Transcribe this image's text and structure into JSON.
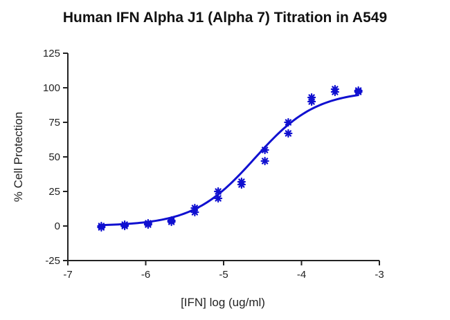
{
  "chart_data": {
    "type": "scatter",
    "title": "Human IFN Alpha J1 (Alpha 7) Titration in A549",
    "xlabel": "[IFN] log (ug/ml)",
    "ylabel": "% Cell Protection",
    "xlim": [
      -7,
      -3
    ],
    "ylim": [
      -25,
      125
    ],
    "x_ticks": [
      -7,
      -6,
      -5,
      -4,
      -3
    ],
    "x_tick_labels": [
      "-7",
      "-6",
      "-5",
      "-4",
      "-3"
    ],
    "y_ticks": [
      -25,
      0,
      25,
      50,
      75,
      100,
      125
    ],
    "y_tick_labels": [
      "-25",
      "0",
      "25",
      "50",
      "75",
      "100",
      "125"
    ],
    "grid": false,
    "series": [
      {
        "marker": "asterisk",
        "color": "#1010d0",
        "points": [
          {
            "x": -6.57,
            "y": -1
          },
          {
            "x": -6.57,
            "y": 0
          },
          {
            "x": -6.27,
            "y": 0
          },
          {
            "x": -6.27,
            "y": 1
          },
          {
            "x": -5.97,
            "y": 1
          },
          {
            "x": -5.97,
            "y": 2
          },
          {
            "x": -5.67,
            "y": 3
          },
          {
            "x": -5.67,
            "y": 4
          },
          {
            "x": -5.37,
            "y": 10
          },
          {
            "x": -5.37,
            "y": 13
          },
          {
            "x": -5.07,
            "y": 20
          },
          {
            "x": -5.07,
            "y": 25
          },
          {
            "x": -4.77,
            "y": 30
          },
          {
            "x": -4.77,
            "y": 32
          },
          {
            "x": -4.47,
            "y": 47
          },
          {
            "x": -4.47,
            "y": 55
          },
          {
            "x": -4.17,
            "y": 67
          },
          {
            "x": -4.17,
            "y": 75
          },
          {
            "x": -3.87,
            "y": 90
          },
          {
            "x": -3.87,
            "y": 93
          },
          {
            "x": -3.57,
            "y": 97
          },
          {
            "x": -3.57,
            "y": 99
          },
          {
            "x": -3.27,
            "y": 97
          },
          {
            "x": -3.27,
            "y": 98
          }
        ]
      }
    ],
    "fit_curve": {
      "model": "sigmoidal dose-response",
      "color": "#1010d0",
      "bottom": 0,
      "top": 98,
      "log_ec50": -4.6,
      "hill_slope": 1.1,
      "x_range": [
        -6.57,
        -3.27
      ]
    }
  },
  "colors": {
    "data": "#1010d0",
    "axis": "#222222",
    "title": "#111111",
    "background": "#ffffff"
  }
}
